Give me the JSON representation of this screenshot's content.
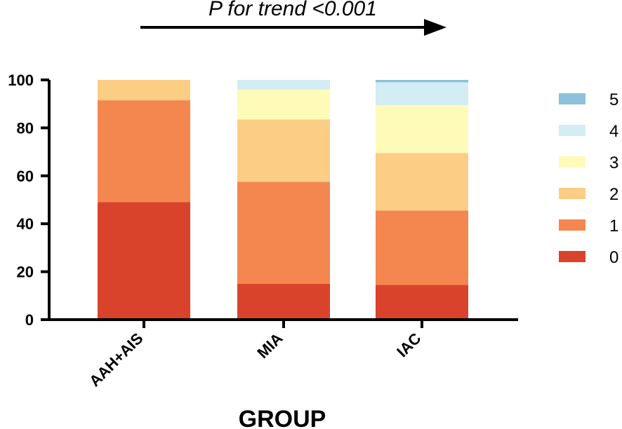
{
  "chart_data": {
    "type": "bar",
    "stacked": true,
    "categories": [
      "AAH+AIS",
      "MIA",
      "IAC"
    ],
    "series": [
      {
        "name": "0",
        "color": "#d9432b",
        "values": [
          49,
          15,
          14.5
        ]
      },
      {
        "name": "1",
        "color": "#f4874f",
        "values": [
          42.5,
          42.5,
          31
        ]
      },
      {
        "name": "2",
        "color": "#fbcd85",
        "values": [
          8.5,
          26,
          24
        ]
      },
      {
        "name": "3",
        "color": "#fefbb8",
        "values": [
          0,
          12.5,
          20
        ]
      },
      {
        "name": "4",
        "color": "#d4ecf4",
        "values": [
          0,
          4,
          9.5
        ]
      },
      {
        "name": "5",
        "color": "#8dc0da",
        "values": [
          0,
          0,
          1
        ]
      }
    ],
    "title": "",
    "xlabel": "GROUP",
    "ylabel": "",
    "ylim": [
      0,
      100
    ],
    "yticks": [
      "0",
      "20",
      "40",
      "60",
      "80",
      "100"
    ],
    "grid": false,
    "legend": "right",
    "annotation": "P for trend <0.001"
  }
}
